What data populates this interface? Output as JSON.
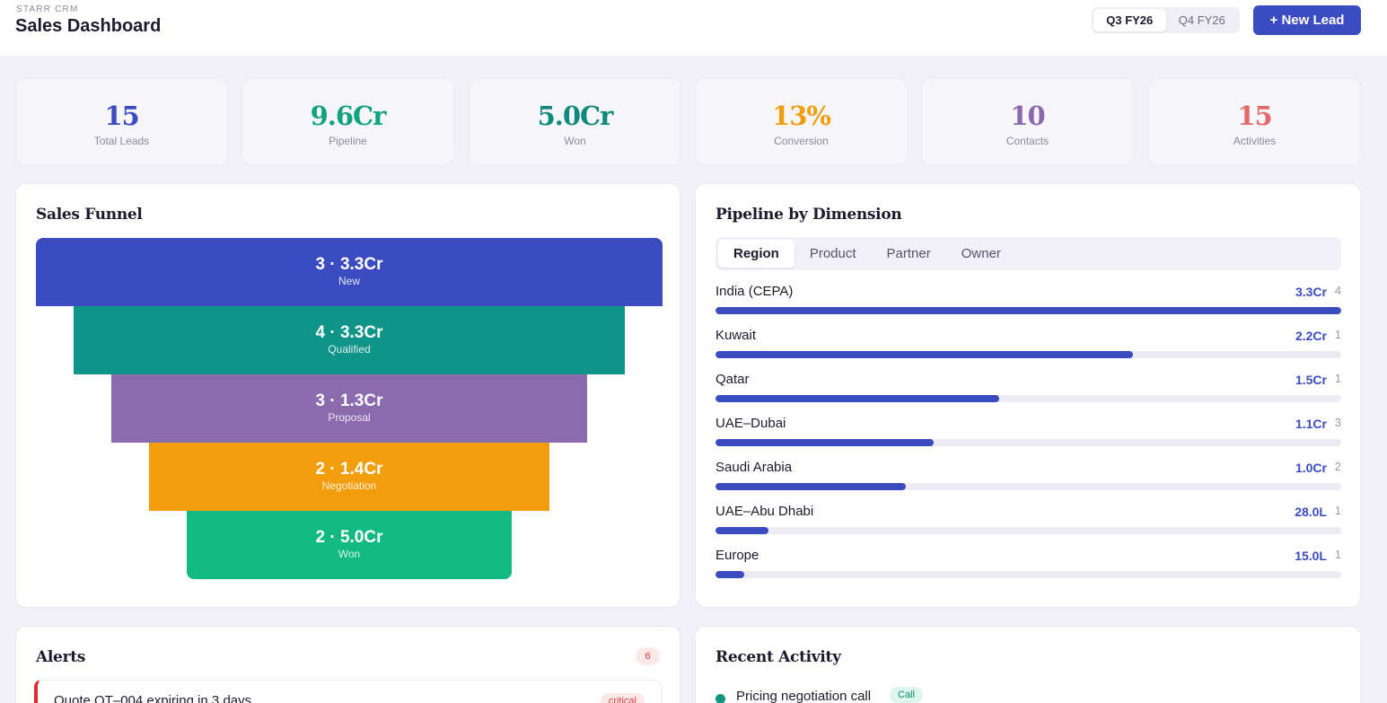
{
  "header": {
    "brand": "STARR CRM",
    "title": "Sales Dashboard",
    "periods": [
      "Q3 FY26",
      "Q4 FY26"
    ],
    "active_period": "Q3 FY26",
    "new_lead_label": "+ New Lead"
  },
  "kpis": [
    {
      "value": "15",
      "label": "Total Leads",
      "color": "#3b4cc0"
    },
    {
      "value": "9.6Cr",
      "label": "Pipeline",
      "color": "#10a37f"
    },
    {
      "value": "5.0Cr",
      "label": "Won",
      "color": "#0e8a7d"
    },
    {
      "value": "13%",
      "label": "Conversion",
      "color": "#f29d0b"
    },
    {
      "value": "10",
      "label": "Contacts",
      "color": "#8a68ae"
    },
    {
      "value": "15",
      "label": "Activities",
      "color": "#e36a6a"
    }
  ],
  "funnel": {
    "title": "Sales Funnel",
    "stages": [
      {
        "count_value": "3 · 3.3Cr",
        "label": "New",
        "color": "#3b4cc0"
      },
      {
        "count_value": "4 · 3.3Cr",
        "label": "Qualified",
        "color": "#0e9488"
      },
      {
        "count_value": "3 · 1.3Cr",
        "label": "Proposal",
        "color": "#8b6aae"
      },
      {
        "count_value": "2 · 1.4Cr",
        "label": "Negotiation",
        "color": "#f29d0b"
      },
      {
        "count_value": "2 · 5.0Cr",
        "label": "Won",
        "color": "#12b981"
      }
    ]
  },
  "pipeline": {
    "title": "Pipeline by Dimension",
    "tabs": [
      "Region",
      "Product",
      "Partner",
      "Owner"
    ],
    "active_tab": "Region",
    "rows": [
      {
        "name": "India (CEPA)",
        "amount": "3.3Cr",
        "count": "4",
        "fraction": 1.0
      },
      {
        "name": "Kuwait",
        "amount": "2.2Cr",
        "count": "1",
        "fraction": 0.667
      },
      {
        "name": "Qatar",
        "amount": "1.5Cr",
        "count": "1",
        "fraction": 0.454
      },
      {
        "name": "UAE–Dubai",
        "amount": "1.1Cr",
        "count": "3",
        "fraction": 0.348
      },
      {
        "name": "Saudi Arabia",
        "amount": "1.0Cr",
        "count": "2",
        "fraction": 0.304
      },
      {
        "name": "UAE–Abu Dhabi",
        "amount": "28.0L",
        "count": "1",
        "fraction": 0.085
      },
      {
        "name": "Europe",
        "amount": "15.0L",
        "count": "1",
        "fraction": 0.046
      }
    ]
  },
  "alerts": {
    "title": "Alerts",
    "count": "6",
    "first": {
      "text": "Quote QT–004 expiring in 3 days",
      "severity": "critical"
    }
  },
  "activity": {
    "title": "Recent Activity",
    "first": {
      "title": "Pricing negotiation call",
      "type": "Call"
    }
  }
}
